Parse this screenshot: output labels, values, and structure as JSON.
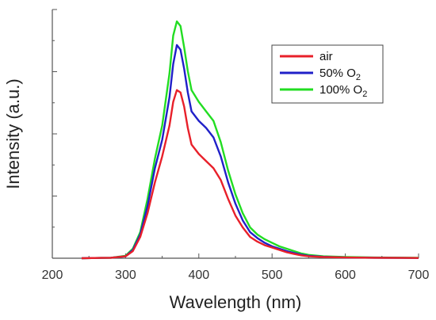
{
  "chart_data": {
    "type": "line",
    "xlabel": "Wavelength (nm)",
    "ylabel": "Intensity (a.u.)",
    "xlim": [
      200,
      700
    ],
    "ylim": [
      0,
      1.05
    ],
    "x_ticks": [
      200,
      300,
      400,
      500,
      600,
      700
    ],
    "y_tick_labels_shown": false,
    "grid": false,
    "legend_position": "top-right",
    "series": [
      {
        "name": "air",
        "legend_text": "air",
        "subscript": "",
        "color": "#e8202a",
        "points": [
          [
            240,
            0
          ],
          [
            280,
            0.002
          ],
          [
            300,
            0.008
          ],
          [
            310,
            0.03
          ],
          [
            320,
            0.09
          ],
          [
            330,
            0.19
          ],
          [
            340,
            0.32
          ],
          [
            350,
            0.43
          ],
          [
            360,
            0.56
          ],
          [
            365,
            0.66
          ],
          [
            370,
            0.71
          ],
          [
            375,
            0.7
          ],
          [
            380,
            0.64
          ],
          [
            385,
            0.55
          ],
          [
            390,
            0.48
          ],
          [
            400,
            0.44
          ],
          [
            410,
            0.41
          ],
          [
            420,
            0.38
          ],
          [
            430,
            0.33
          ],
          [
            440,
            0.25
          ],
          [
            450,
            0.18
          ],
          [
            460,
            0.13
          ],
          [
            470,
            0.09
          ],
          [
            480,
            0.07
          ],
          [
            490,
            0.055
          ],
          [
            500,
            0.045
          ],
          [
            510,
            0.035
          ],
          [
            520,
            0.025
          ],
          [
            530,
            0.018
          ],
          [
            540,
            0.012
          ],
          [
            550,
            0.008
          ],
          [
            570,
            0.005
          ],
          [
            600,
            0.003
          ],
          [
            640,
            0.002
          ],
          [
            700,
            0.001
          ]
        ]
      },
      {
        "name": "50% O2",
        "legend_text": "50% O",
        "subscript": "2",
        "color": "#2020c8",
        "points": [
          [
            240,
            0
          ],
          [
            280,
            0.002
          ],
          [
            300,
            0.008
          ],
          [
            310,
            0.035
          ],
          [
            320,
            0.1
          ],
          [
            330,
            0.22
          ],
          [
            340,
            0.38
          ],
          [
            350,
            0.5
          ],
          [
            360,
            0.68
          ],
          [
            365,
            0.82
          ],
          [
            370,
            0.9
          ],
          [
            375,
            0.88
          ],
          [
            380,
            0.8
          ],
          [
            385,
            0.7
          ],
          [
            390,
            0.62
          ],
          [
            400,
            0.58
          ],
          [
            410,
            0.55
          ],
          [
            420,
            0.51
          ],
          [
            430,
            0.43
          ],
          [
            440,
            0.32
          ],
          [
            450,
            0.23
          ],
          [
            460,
            0.16
          ],
          [
            470,
            0.11
          ],
          [
            480,
            0.085
          ],
          [
            490,
            0.065
          ],
          [
            500,
            0.05
          ],
          [
            510,
            0.04
          ],
          [
            520,
            0.03
          ],
          [
            530,
            0.022
          ],
          [
            540,
            0.015
          ],
          [
            550,
            0.01
          ],
          [
            570,
            0.006
          ],
          [
            600,
            0.003
          ],
          [
            640,
            0.002
          ],
          [
            700,
            0.001
          ]
        ]
      },
      {
        "name": "100% O2",
        "legend_text": "100% O",
        "subscript": "2",
        "color": "#22dd22",
        "points": [
          [
            240,
            0
          ],
          [
            280,
            0.002
          ],
          [
            300,
            0.01
          ],
          [
            310,
            0.04
          ],
          [
            320,
            0.11
          ],
          [
            330,
            0.25
          ],
          [
            340,
            0.42
          ],
          [
            350,
            0.56
          ],
          [
            360,
            0.78
          ],
          [
            365,
            0.94
          ],
          [
            370,
            1.0
          ],
          [
            375,
            0.98
          ],
          [
            380,
            0.89
          ],
          [
            385,
            0.79
          ],
          [
            390,
            0.71
          ],
          [
            400,
            0.66
          ],
          [
            410,
            0.62
          ],
          [
            420,
            0.58
          ],
          [
            430,
            0.49
          ],
          [
            440,
            0.37
          ],
          [
            450,
            0.27
          ],
          [
            460,
            0.19
          ],
          [
            470,
            0.13
          ],
          [
            480,
            0.1
          ],
          [
            490,
            0.08
          ],
          [
            500,
            0.065
          ],
          [
            510,
            0.05
          ],
          [
            520,
            0.04
          ],
          [
            530,
            0.03
          ],
          [
            540,
            0.02
          ],
          [
            550,
            0.014
          ],
          [
            570,
            0.008
          ],
          [
            600,
            0.005
          ],
          [
            640,
            0.003
          ],
          [
            700,
            0.002
          ]
        ]
      }
    ]
  }
}
